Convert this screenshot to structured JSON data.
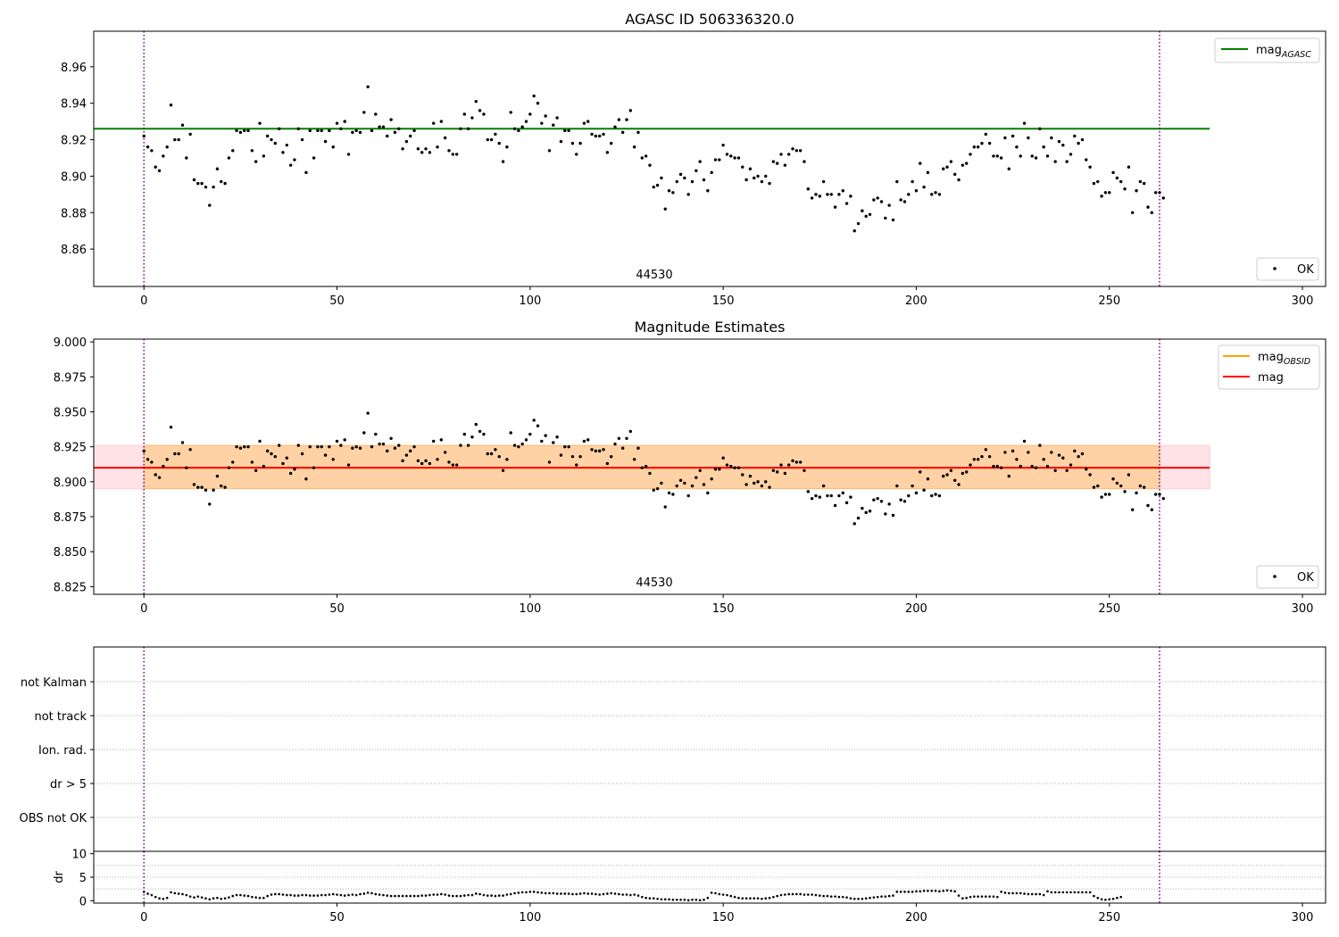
{
  "chart_data": [
    {
      "type": "scatter",
      "title": "AGASC ID 506336320.0",
      "obsid_label": "44530",
      "xlim": [
        -13,
        306
      ],
      "ylim": [
        8.8395,
        8.9795
      ],
      "xticks": [
        0,
        50,
        100,
        150,
        200,
        250,
        300
      ],
      "yticks": [
        8.86,
        8.88,
        8.9,
        8.92,
        8.94,
        8.96
      ],
      "ytick_labels": [
        "8.86",
        "8.88",
        "8.90",
        "8.92",
        "8.94",
        "8.96"
      ],
      "vlines": [
        0,
        263
      ],
      "hlines": [
        {
          "name": "mag_AGASC",
          "y": 8.926,
          "x": [
            -13,
            276
          ],
          "color": "#008000"
        }
      ],
      "legend_upper": [
        {
          "label": "mag",
          "sub": "AGASC",
          "color": "#008000"
        }
      ],
      "legend_lower": [
        {
          "label": "OK",
          "marker": "dot"
        }
      ],
      "series": [
        {
          "name": "OK",
          "color": "#000000",
          "y_key": "shared.mag_points"
        }
      ]
    },
    {
      "type": "scatter",
      "title": "Magnitude Estimates",
      "obsid_label": "44530",
      "xlim": [
        -13,
        306
      ],
      "ylim": [
        8.8195,
        9.002
      ],
      "xticks": [
        0,
        50,
        100,
        150,
        200,
        250,
        300
      ],
      "yticks": [
        8.825,
        8.85,
        8.875,
        8.9,
        8.925,
        8.95,
        8.975,
        9.0
      ],
      "ytick_labels": [
        "8.825",
        "8.850",
        "8.875",
        "8.900",
        "8.925",
        "8.950",
        "8.975",
        "9.000"
      ],
      "vlines": [
        0,
        263
      ],
      "bands": [
        {
          "name": "mag_OBSID",
          "y": [
            8.895,
            8.926
          ],
          "x": [
            0,
            263
          ],
          "color": "#ffa500",
          "opacity": 0.28
        },
        {
          "name": "mag",
          "y": [
            8.895,
            8.926
          ],
          "x": [
            -13,
            276
          ],
          "color": "#ff9aa8",
          "opacity": 0.28
        }
      ],
      "hlines": [
        {
          "name": "mag_OBSID",
          "y": 8.91,
          "x": [
            0,
            263
          ],
          "color": "#ffa500"
        },
        {
          "name": "mag",
          "y": 8.91,
          "x": [
            -13,
            276
          ],
          "color": "#ff0000"
        }
      ],
      "legend_upper": [
        {
          "label": "mag",
          "sub": "OBSID",
          "color": "#ffa500"
        },
        {
          "label": "mag",
          "sub": "",
          "color": "#ff0000"
        }
      ],
      "legend_lower": [
        {
          "label": "OK",
          "marker": "dot"
        }
      ],
      "series": [
        {
          "name": "OK",
          "color": "#000000",
          "y_key": "shared.mag_points"
        }
      ]
    },
    {
      "type": "table",
      "xlim": [
        -13,
        306
      ],
      "vlines": [
        0,
        263
      ],
      "flag_labels": [
        "not Kalman",
        "not track",
        "Ion. rad.",
        "dr > 5",
        "OBS not OK"
      ],
      "flags_set": []
    },
    {
      "type": "scatter",
      "ylabel": "dr",
      "xlim": [
        -13,
        306
      ],
      "ylim": [
        -0.5,
        10.5
      ],
      "xticks": [
        0,
        50,
        100,
        150,
        200,
        250,
        300
      ],
      "yticks": [
        0,
        5,
        10
      ],
      "ytick_labels": [
        "0",
        "5",
        "10"
      ],
      "vlines": [
        0,
        263
      ],
      "series": [
        {
          "name": "dr",
          "color": "#000000",
          "y_key": "shared.dr_points"
        }
      ]
    }
  ],
  "shared": {
    "mag_points": [
      8.922,
      8.916,
      8.914,
      8.905,
      8.903,
      8.911,
      8.916,
      8.939,
      8.92,
      8.92,
      8.928,
      8.91,
      8.923,
      8.898,
      8.896,
      8.896,
      8.894,
      8.884,
      8.894,
      8.904,
      8.897,
      8.896,
      8.91,
      8.914,
      8.925,
      8.924,
      8.925,
      8.925,
      8.914,
      8.908,
      8.929,
      8.911,
      8.922,
      8.92,
      8.918,
      8.926,
      8.913,
      8.917,
      8.906,
      8.909,
      8.926,
      8.92,
      8.902,
      8.925,
      8.91,
      8.925,
      8.925,
      8.919,
      8.925,
      8.916,
      8.929,
      8.926,
      8.93,
      8.912,
      8.924,
      8.925,
      8.924,
      8.935,
      8.949,
      8.925,
      8.934,
      8.927,
      8.927,
      8.922,
      8.931,
      8.924,
      8.926,
      8.915,
      8.919,
      8.922,
      8.925,
      8.915,
      8.913,
      8.915,
      8.913,
      8.929,
      8.916,
      8.93,
      8.921,
      8.914,
      8.912,
      8.912,
      8.926,
      8.934,
      8.926,
      8.932,
      8.941,
      8.936,
      8.934,
      8.92,
      8.92,
      8.923,
      8.918,
      8.908,
      8.916,
      8.935,
      8.926,
      8.925,
      8.927,
      8.93,
      8.934,
      8.944,
      8.94,
      8.929,
      8.933,
      8.914,
      8.928,
      8.932,
      8.919,
      8.925,
      8.925,
      8.918,
      8.912,
      8.918,
      8.929,
      8.93,
      8.923,
      8.922,
      8.922,
      8.923,
      8.913,
      8.918,
      8.927,
      8.931,
      8.924,
      8.931,
      8.936,
      8.916,
      8.924,
      8.91,
      8.911,
      8.906,
      8.894,
      8.895,
      8.899,
      8.882,
      8.892,
      8.891,
      8.897,
      8.901,
      8.899,
      8.89,
      8.897,
      8.903,
      8.908,
      8.898,
      8.892,
      8.902,
      8.909,
      8.909,
      8.917,
      8.912,
      8.911,
      8.91,
      8.91,
      8.905,
      8.898,
      8.904,
      8.899,
      8.9,
      8.897,
      8.9,
      8.896,
      8.908,
      8.907,
      8.912,
      8.906,
      8.912,
      8.915,
      8.914,
      8.914,
      8.908,
      8.893,
      8.888,
      8.89,
      8.889,
      8.897,
      8.89,
      8.89,
      8.883,
      8.89,
      8.892,
      8.885,
      8.889,
      8.87,
      8.874,
      8.881,
      8.878,
      8.879,
      8.887,
      8.888,
      8.886,
      8.877,
      8.884,
      8.876,
      8.897,
      8.887,
      8.886,
      8.89,
      8.897,
      8.892,
      8.907,
      8.894,
      8.902,
      8.89,
      8.891,
      8.89,
      8.904,
      8.905,
      8.908,
      8.901,
      8.898,
      8.906,
      8.907,
      8.912,
      8.916,
      8.916,
      8.918,
      8.923,
      8.918,
      8.911,
      8.911,
      8.91,
      8.921,
      8.904,
      8.922,
      8.916,
      8.911,
      8.929,
      8.921,
      8.911,
      8.91,
      8.926,
      8.916,
      8.911,
      8.921,
      8.908,
      8.919,
      8.917,
      8.908,
      8.912,
      8.922,
      8.918,
      8.92,
      8.909,
      8.905,
      8.896,
      8.897,
      8.889,
      8.891,
      8.891,
      8.902,
      8.899,
      8.897,
      8.893,
      8.905,
      8.88,
      8.892,
      8.897,
      8.896,
      8.883,
      8.88,
      8.891,
      8.891,
      8.888
    ],
    "dr_points": [
      1.9,
      1.5,
      1.2,
      0.8,
      0.5,
      0.4,
      0.6,
      1.8,
      1.6,
      1.5,
      1.4,
      1.2,
      0.9,
      0.7,
      0.9,
      0.7,
      0.5,
      0.3,
      0.5,
      0.6,
      0.4,
      0.5,
      0.7,
      1.0,
      1.2,
      1.2,
      1.1,
      1.0,
      0.8,
      0.7,
      0.6,
      0.6,
      1.0,
      1.3,
      1.4,
      1.4,
      1.3,
      1.2,
      1.2,
      1.1,
      1.1,
      1.2,
      1.2,
      1.1,
      1.1,
      1.1,
      1.2,
      1.2,
      1.3,
      1.4,
      1.3,
      1.2,
      1.1,
      1.2,
      1.3,
      1.2,
      1.4,
      1.5,
      1.7,
      1.6,
      1.4,
      1.3,
      1.2,
      1.1,
      1.0,
      1.0,
      1.0,
      1.0,
      1.0,
      1.0,
      1.0,
      1.0,
      1.1,
      1.1,
      1.2,
      1.3,
      1.3,
      1.4,
      1.3,
      1.1,
      1.0,
      1.0,
      1.0,
      1.1,
      1.2,
      1.2,
      1.5,
      1.4,
      1.2,
      1.1,
      1.1,
      1.0,
      1.1,
      1.1,
      1.3,
      1.4,
      1.6,
      1.7,
      1.8,
      1.8,
      1.9,
      1.9,
      1.8,
      1.7,
      1.6,
      1.6,
      1.6,
      1.5,
      1.5,
      1.5,
      1.5,
      1.4,
      1.4,
      1.5,
      1.6,
      1.5,
      1.5,
      1.4,
      1.3,
      1.4,
      1.5,
      1.6,
      1.5,
      1.4,
      1.3,
      1.3,
      1.2,
      1.3,
      1.1,
      0.8,
      0.6,
      0.5,
      0.5,
      0.4,
      0.3,
      0.3,
      0.3,
      0.2,
      0.2,
      0.2,
      0.2,
      0.1,
      0.2,
      0.2,
      0.1,
      0.2,
      0.6,
      1.7,
      1.6,
      1.4,
      1.3,
      1.2,
      1.0,
      0.8,
      0.6,
      0.5,
      0.5,
      0.5,
      0.5,
      0.5,
      0.4,
      0.5,
      0.6,
      0.8,
      1.0,
      1.2,
      1.3,
      1.4,
      1.4,
      1.4,
      1.4,
      1.3,
      1.3,
      1.3,
      1.2,
      1.1,
      1.0,
      1.0,
      0.9,
      0.9,
      0.8,
      0.8,
      0.7,
      0.5,
      0.4,
      0.4,
      0.4,
      0.5,
      0.6,
      0.7,
      0.8,
      0.9,
      0.9,
      1.0,
      1.1,
      1.9,
      1.9,
      1.9,
      1.9,
      1.9,
      2.0,
      2.0,
      2.1,
      2.1,
      2.1,
      2.1,
      2.0,
      2.1,
      2.2,
      2.1,
      2.0,
      1.1,
      0.5,
      0.6,
      0.8,
      0.9,
      0.9,
      0.9,
      0.9,
      0.9,
      0.9,
      0.8,
      1.9,
      1.7,
      1.6,
      1.6,
      1.6,
      1.6,
      1.5,
      1.4,
      1.4,
      1.4,
      1.4,
      1.2,
      2.0,
      1.8,
      1.8,
      1.8,
      1.8,
      1.8,
      1.8,
      1.8,
      1.8,
      1.8,
      1.8,
      1.8,
      1.0,
      0.6,
      0.3,
      0.2,
      0.3,
      0.4,
      0.6,
      0.8
    ]
  }
}
